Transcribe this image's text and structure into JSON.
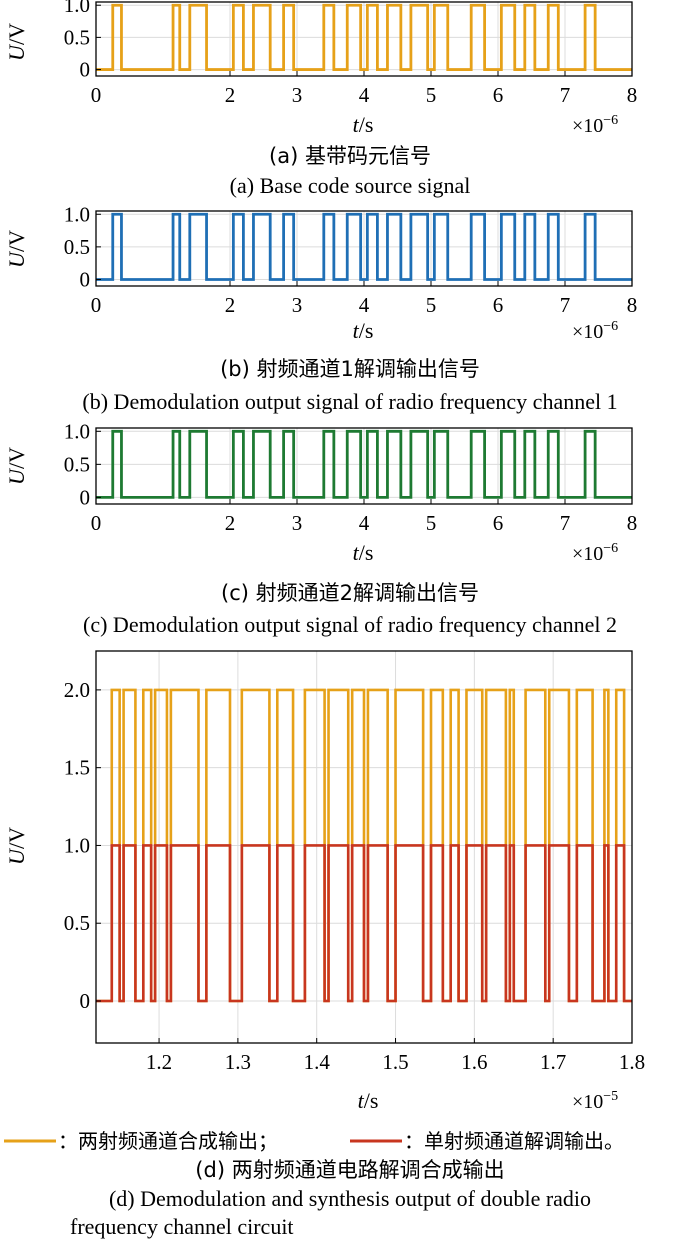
{
  "figure": {
    "legend": {
      "combined_label": "：两射频通道合成输出；",
      "single_label": "：单射频通道解调输出。"
    }
  },
  "chart_data": [
    {
      "type": "line",
      "panel": "a",
      "caption_zh": "(a) 基带码元信号",
      "caption_en": "(a) Base code source signal",
      "ylabel": "U/V",
      "xlabel": "t/s",
      "x_exponent": "×10",
      "x_exponent_power": "−6",
      "xlim": [
        0,
        8
      ],
      "ylim": [
        -0.1,
        1.05
      ],
      "xticks": [
        "0",
        "2",
        "3",
        "4",
        "5",
        "6",
        "7",
        "8"
      ],
      "xtick_values": [
        0,
        2,
        3,
        4,
        5,
        6,
        7,
        8
      ],
      "yticks": [
        "0",
        "0.5",
        "1.0"
      ],
      "ytick_values": [
        0,
        0.5,
        1.0
      ],
      "color": "#E6A119",
      "series": [
        {
          "edges": [
            0,
            0.25,
            0.38,
            1.15,
            1.25,
            1.4,
            1.65,
            2.05,
            2.2,
            2.35,
            2.6,
            2.8,
            2.95,
            3.4,
            3.55,
            3.75,
            3.95,
            4.05,
            4.2,
            4.35,
            4.55,
            4.7,
            4.95,
            5.05,
            5.25,
            5.6,
            5.8,
            6.05,
            6.25,
            6.4,
            6.55,
            6.75,
            6.9,
            7.3,
            7.45,
            8.0
          ],
          "levels": [
            0,
            1,
            0,
            1,
            0,
            1,
            0,
            1,
            0,
            1,
            0,
            1,
            0,
            1,
            0,
            1,
            0,
            1,
            0,
            1,
            0,
            1,
            0,
            1,
            0,
            1,
            0,
            1,
            0,
            1,
            0,
            1,
            0,
            1,
            0
          ]
        }
      ]
    },
    {
      "type": "line",
      "panel": "b",
      "caption_zh": "(b) 射频通道1解调输出信号",
      "caption_en": "(b) Demodulation output signal of  radio frequency channel 1",
      "ylabel": "U/V",
      "xlabel": "t/s",
      "x_exponent": "×10",
      "x_exponent_power": "−6",
      "xlim": [
        0,
        8
      ],
      "ylim": [
        -0.1,
        1.05
      ],
      "xticks": [
        "0",
        "2",
        "3",
        "4",
        "5",
        "6",
        "7",
        "8"
      ],
      "xtick_values": [
        0,
        2,
        3,
        4,
        5,
        6,
        7,
        8
      ],
      "yticks": [
        "0",
        "0.5",
        "1.0"
      ],
      "ytick_values": [
        0,
        0.5,
        1.0
      ],
      "color": "#1F6FB5",
      "series": [
        {
          "edges": [
            0,
            0.25,
            0.38,
            1.15,
            1.25,
            1.4,
            1.65,
            2.05,
            2.2,
            2.35,
            2.6,
            2.8,
            2.95,
            3.4,
            3.55,
            3.75,
            3.95,
            4.05,
            4.2,
            4.35,
            4.55,
            4.7,
            4.95,
            5.05,
            5.25,
            5.6,
            5.8,
            6.05,
            6.25,
            6.4,
            6.55,
            6.75,
            6.9,
            7.3,
            7.45,
            8.0
          ],
          "levels": [
            0,
            1,
            0,
            1,
            0,
            1,
            0,
            1,
            0,
            1,
            0,
            1,
            0,
            1,
            0,
            1,
            0,
            1,
            0,
            1,
            0,
            1,
            0,
            1,
            0,
            1,
            0,
            1,
            0,
            1,
            0,
            1,
            0,
            1,
            0
          ]
        }
      ]
    },
    {
      "type": "line",
      "panel": "c",
      "caption_zh": "(c) 射频通道2解调输出信号",
      "caption_en": "(c) Demodulation output signal of  radio frequency channel 2",
      "ylabel": "U/V",
      "xlabel": "t/s",
      "x_exponent": "×10",
      "x_exponent_power": "−6",
      "xlim": [
        0,
        8
      ],
      "ylim": [
        -0.1,
        1.05
      ],
      "xticks": [
        "0",
        "2",
        "3",
        "4",
        "5",
        "6",
        "7",
        "8"
      ],
      "xtick_values": [
        0,
        2,
        3,
        4,
        5,
        6,
        7,
        8
      ],
      "yticks": [
        "0",
        "0.5",
        "1.0"
      ],
      "ytick_values": [
        0,
        0.5,
        1.0
      ],
      "color": "#1E7A32",
      "series": [
        {
          "edges": [
            0,
            0.25,
            0.38,
            1.15,
            1.25,
            1.4,
            1.65,
            2.05,
            2.2,
            2.35,
            2.6,
            2.8,
            2.95,
            3.4,
            3.55,
            3.75,
            3.95,
            4.05,
            4.2,
            4.35,
            4.55,
            4.7,
            4.95,
            5.05,
            5.25,
            5.6,
            5.8,
            6.05,
            6.25,
            6.4,
            6.55,
            6.75,
            6.9,
            7.3,
            7.45,
            8.0
          ],
          "levels": [
            0,
            1,
            0,
            1,
            0,
            1,
            0,
            1,
            0,
            1,
            0,
            1,
            0,
            1,
            0,
            1,
            0,
            1,
            0,
            1,
            0,
            1,
            0,
            1,
            0,
            1,
            0,
            1,
            0,
            1,
            0,
            1,
            0,
            1,
            0
          ]
        }
      ]
    },
    {
      "type": "line",
      "panel": "d",
      "caption_zh": "(d) 两射频通道电路解调合成输出",
      "caption_en_line1": "(d) Demodulation and synthesis output of double radio",
      "caption_en_line2": "frequency channel  circuit",
      "ylabel": "U/V",
      "xlabel": "t/s",
      "x_exponent": "×10",
      "x_exponent_power": "−5",
      "xlim": [
        1.12,
        1.8
      ],
      "ylim": [
        -0.27,
        2.25
      ],
      "xticks": [
        "1.2",
        "1.3",
        "1.4",
        "1.5",
        "1.6",
        "1.7",
        "1.8"
      ],
      "xtick_values": [
        1.2,
        1.3,
        1.4,
        1.5,
        1.6,
        1.7,
        1.8
      ],
      "yticks": [
        "0",
        "0.5",
        "1.0",
        "1.5",
        "2.0"
      ],
      "ytick_values": [
        0,
        0.5,
        1.0,
        1.5,
        2.0
      ],
      "series": [
        {
          "name": "两射频通道合成输出",
          "color": "#E6A119",
          "edges": [
            1.12,
            1.14,
            1.15,
            1.155,
            1.17,
            1.18,
            1.19,
            1.195,
            1.21,
            1.215,
            1.25,
            1.26,
            1.29,
            1.305,
            1.34,
            1.35,
            1.37,
            1.385,
            1.41,
            1.415,
            1.44,
            1.445,
            1.46,
            1.465,
            1.49,
            1.5,
            1.535,
            1.545,
            1.56,
            1.57,
            1.58,
            1.59,
            1.61,
            1.615,
            1.64,
            1.645,
            1.65,
            1.665,
            1.69,
            1.695,
            1.72,
            1.73,
            1.75,
            1.765,
            1.77,
            1.78,
            1.79,
            1.8
          ],
          "levels": [
            0,
            2,
            0,
            2,
            0,
            2,
            0,
            2,
            0,
            2,
            0,
            2,
            0,
            2,
            0,
            2,
            0,
            2,
            0,
            2,
            0,
            2,
            0,
            2,
            0,
            2,
            0,
            2,
            0,
            2,
            0,
            2,
            0,
            2,
            0,
            2,
            0,
            2,
            0,
            2,
            0,
            2,
            0,
            2,
            0,
            2,
            0
          ]
        },
        {
          "name": "单射频通道解调输出",
          "color": "#C8361F",
          "edges": [
            1.12,
            1.14,
            1.15,
            1.155,
            1.17,
            1.18,
            1.19,
            1.195,
            1.21,
            1.215,
            1.25,
            1.26,
            1.29,
            1.305,
            1.34,
            1.35,
            1.37,
            1.385,
            1.41,
            1.415,
            1.44,
            1.445,
            1.46,
            1.465,
            1.49,
            1.5,
            1.535,
            1.545,
            1.56,
            1.57,
            1.58,
            1.59,
            1.61,
            1.615,
            1.64,
            1.645,
            1.65,
            1.665,
            1.69,
            1.695,
            1.72,
            1.73,
            1.75,
            1.765,
            1.77,
            1.78,
            1.79,
            1.8
          ],
          "levels": [
            0,
            1,
            0,
            1,
            0,
            1,
            0,
            1,
            0,
            1,
            0,
            1,
            0,
            1,
            0,
            1,
            0,
            1,
            0,
            1,
            0,
            1,
            0,
            1,
            0,
            1,
            0,
            1,
            0,
            1,
            0,
            1,
            0,
            1,
            0,
            1,
            0,
            1,
            0,
            1,
            0,
            1,
            0,
            1,
            0,
            1,
            0
          ]
        }
      ]
    }
  ]
}
